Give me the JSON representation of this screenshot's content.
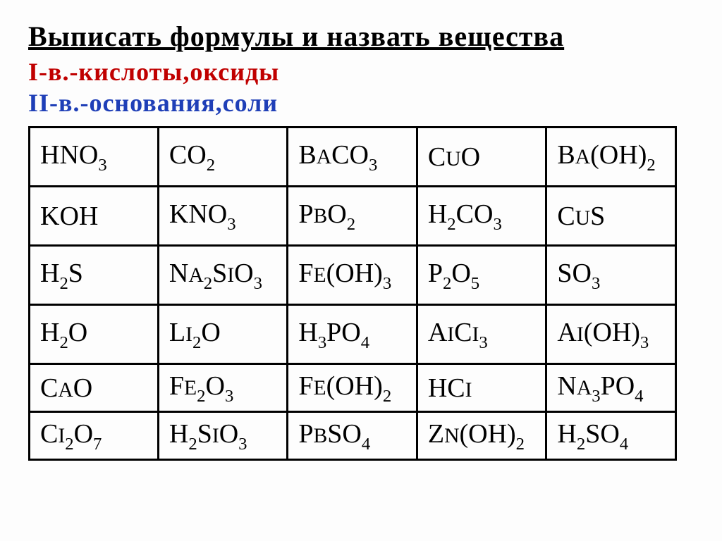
{
  "title": "Выписать формулы  и назвать вещества",
  "subtitle1": "I-в.-кислоты,оксиды",
  "subtitle2": "II-в.-основания,соли",
  "table": {
    "type": "table",
    "columns": 5,
    "rows_count": 6,
    "border_color": "#000000",
    "background_color": "#fdfdfd",
    "cell_fontsize": 38,
    "cell_font": "Times New Roman",
    "rows": [
      [
        {
          "base": "HNO",
          "sub": "3"
        },
        {
          "base": "CO",
          "sub": "2"
        },
        {
          "pre": "B",
          "smallA": true,
          "base": "CO",
          "sub": "3"
        },
        {
          "pre": "C",
          "smallU": true,
          "base": "O"
        },
        {
          "pre": "B",
          "smallA": true,
          "base": "(OH)",
          "sub": "2"
        }
      ],
      [
        {
          "base": "KOH"
        },
        {
          "base": "KNO",
          "sub": "3"
        },
        {
          "pre": "P",
          "smallB": true,
          "base": "O",
          "sub": "2"
        },
        {
          "base": "H",
          "sub": "2",
          "base2": "CO",
          "sub2": "3"
        },
        {
          "pre": "C",
          "smallU": true,
          "base": "S"
        }
      ],
      [
        {
          "base": "H",
          "sub": "2",
          "base2": "S"
        },
        {
          "pre": "N",
          "smallA": true,
          "sub0": "2",
          "base": "S",
          "smallI": true,
          "base2": "O",
          "sub": "3"
        },
        {
          "pre": "F",
          "smallE": true,
          "base": "(OH)",
          "sub": "3"
        },
        {
          "base": "P",
          "sub": "2",
          "base2": "O",
          "sub2": "5"
        },
        {
          "base": "SO",
          "sub": "3"
        }
      ],
      [
        {
          "base": "H",
          "sub": "2",
          "base2": "O"
        },
        {
          "pre": "L",
          "smallI2": true,
          "sub0": "2",
          "base": "O"
        },
        {
          "base": "H",
          "sub": "3",
          "base2": "PO",
          "sub2": "4"
        },
        {
          "pre": "A",
          "smallI": true,
          "base": "C",
          "smallL": true,
          "sub": "3"
        },
        {
          "pre": "A",
          "smallI": true,
          "base": "(OH)",
          "sub": "3"
        }
      ],
      [
        {
          "pre": "C",
          "smallA": true,
          "base": "O"
        },
        {
          "pre": "F",
          "smallE": true,
          "sub0": "2",
          "base": "O",
          "sub": "3"
        },
        {
          "pre": "F",
          "smallE": true,
          "base": "(OH)",
          "sub": "2"
        },
        {
          "base": "HC",
          "smallL": true
        },
        {
          "pre": "N",
          "smallA": true,
          "sub0": "3",
          "base": "PO",
          "sub": "4"
        }
      ],
      [
        {
          "pre": "C",
          "smallI2": true,
          "sub0": "2",
          "base": "O",
          "sub": "7"
        },
        {
          "base": "H",
          "sub": "2",
          "base2": "S",
          "smallI": true,
          "base3": "O",
          "sub2": "3"
        },
        {
          "pre": "P",
          "smallB": true,
          "base": "SO",
          "sub": "4"
        },
        {
          "pre": "Z",
          "smallN": true,
          "base": "(OH)",
          "sub": "2"
        },
        {
          "base": "H",
          "sub": "2",
          "base2": "SO",
          "sub2": "4"
        }
      ]
    ]
  },
  "colors": {
    "title": "#000000",
    "subtitle1": "#c00000",
    "subtitle2": "#1f3fb7",
    "border": "#000000",
    "background": "#fdfdfd"
  }
}
